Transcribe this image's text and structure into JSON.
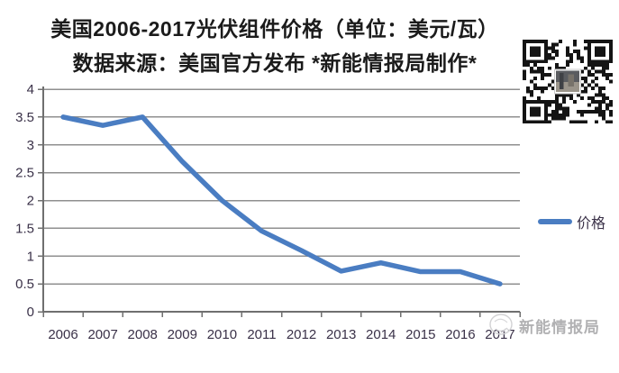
{
  "title": "美国2006-2017光伏组件价格（单位：美元/瓦）",
  "subtitle": "数据来源：美国官方发布  *新能情报局制作*",
  "legend": {
    "label": "价格"
  },
  "watermark": "新能情报局",
  "qr_code": {
    "name": "wechat-qr-code"
  },
  "colors": {
    "line": "#4a7dc2",
    "grid": "#8f8f8f",
    "axis": "#6f6f6f",
    "tick_label": "#3a3148",
    "title": "#1b1b1b",
    "watermark": "#a9a9ab"
  },
  "chart_data": {
    "type": "line",
    "title": "美国2006-2017光伏组件价格（单位：美元/瓦）",
    "subtitle": "数据来源：美国官方发布  *新能情报局制作*",
    "categories": [
      "2006",
      "2007",
      "2008",
      "2009",
      "2010",
      "2011",
      "2012",
      "2013",
      "2014",
      "2015",
      "2016",
      "2017"
    ],
    "series": [
      {
        "name": "价格",
        "values": [
          3.5,
          3.35,
          3.5,
          2.7,
          2.0,
          1.45,
          1.1,
          0.73,
          0.88,
          0.72,
          0.72,
          0.5
        ]
      }
    ],
    "xlabel": "",
    "ylabel": "",
    "ylim": [
      0,
      4
    ],
    "yticks": [
      "0",
      "0.5",
      "1",
      "1.5",
      "2",
      "2.5",
      "3",
      "3.5",
      "4"
    ],
    "grid": true,
    "legend_position": "right"
  }
}
